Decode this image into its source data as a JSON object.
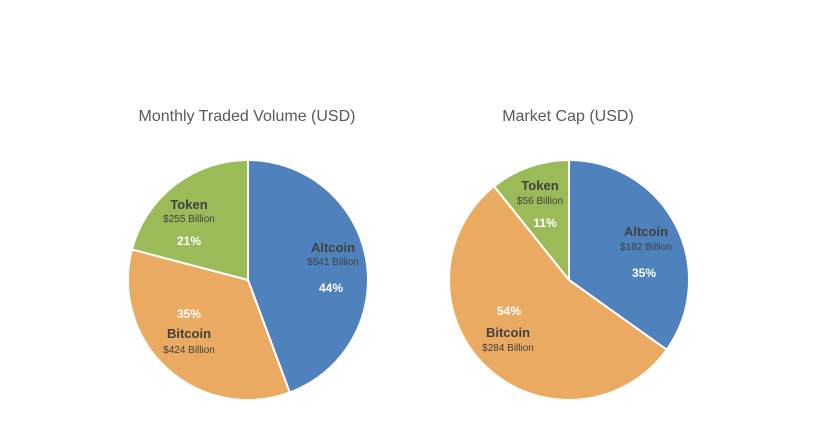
{
  "chart_data": [
    {
      "type": "pie",
      "title": "Monthly Traded Volume (USD)",
      "slices": [
        {
          "name": "Altcoin",
          "value": 541,
          "value_label": "$541 Billion",
          "percent_label": "44%",
          "color": "#4f81bd"
        },
        {
          "name": "Bitcoin",
          "value": 424,
          "value_label": "$424 Billion",
          "percent_label": "35%",
          "color": "#ebaa62"
        },
        {
          "name": "Token",
          "value": 255,
          "value_label": "$255 Billion",
          "percent_label": "21%",
          "color": "#9bbb59"
        }
      ]
    },
    {
      "type": "pie",
      "title": "Market Cap (USD)",
      "slices": [
        {
          "name": "Altcoin",
          "value": 182,
          "value_label": "$182 Billion",
          "percent_label": "35%",
          "color": "#4f81bd"
        },
        {
          "name": "Bitcoin",
          "value": 284,
          "value_label": "$284 Billion",
          "percent_label": "54%",
          "color": "#ebaa62"
        },
        {
          "name": "Token",
          "value": 56,
          "value_label": "$56 Billion",
          "percent_label": "11%",
          "color": "#9bbb59"
        }
      ]
    }
  ]
}
